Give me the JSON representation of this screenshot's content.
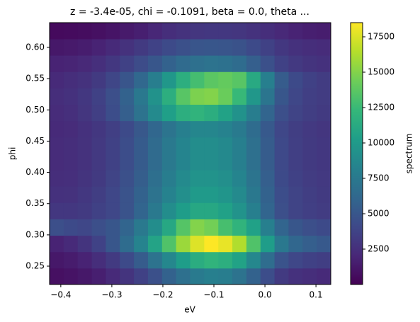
{
  "chart_data": {
    "type": "heatmap",
    "title": "z = -3.4e-05, chi = -0.1091, beta = 0.0, theta ...",
    "x_label": "eV",
    "y_label": "phi",
    "colorbar_label": "spectrum",
    "colormap": "viridis",
    "x": [
      -0.4082,
      -0.3807,
      -0.3531,
      -0.3256,
      -0.298,
      -0.2705,
      -0.2429,
      -0.2154,
      -0.1878,
      -0.1603,
      -0.1327,
      -0.1052,
      -0.0776,
      -0.0501,
      -0.0225,
      0.005,
      0.0326,
      0.0601,
      0.0877,
      0.1152
    ],
    "y": [
      0.2337,
      0.2599,
      0.2861,
      0.3123,
      0.3385,
      0.3647,
      0.3909,
      0.4171,
      0.4433,
      0.4695,
      0.4957,
      0.5219,
      0.5481,
      0.5743,
      0.6005,
      0.6267
    ],
    "z": [
      [
        800,
        960,
        1200,
        1600,
        2200,
        2800,
        3600,
        4600,
        5800,
        6800,
        7600,
        8000,
        7800,
        7000,
        5800,
        4400,
        3200,
        2600,
        2400,
        2200
      ],
      [
        1200,
        1400,
        1800,
        2400,
        3200,
        4200,
        5400,
        7000,
        8600,
        10200,
        11400,
        12000,
        11600,
        10600,
        8600,
        6600,
        4800,
        4000,
        3600,
        3400
      ],
      [
        1800,
        2200,
        2800,
        3700,
        5000,
        6500,
        8300,
        10700,
        13300,
        15700,
        17600,
        18500,
        17900,
        16300,
        13300,
        10200,
        7400,
        6100,
        5600,
        5200
      ],
      [
        4500,
        4200,
        4000,
        4500,
        5000,
        6000,
        7500,
        9000,
        11000,
        13500,
        15000,
        14500,
        13000,
        12000,
        10500,
        8000,
        6000,
        5000,
        4500,
        4200
      ],
      [
        3000,
        3000,
        3200,
        3600,
        4000,
        4800,
        6000,
        7500,
        9000,
        10200,
        11000,
        11000,
        10500,
        9500,
        8000,
        6000,
        4500,
        3800,
        3500,
        3300
      ],
      [
        2600,
        2700,
        3000,
        3400,
        4000,
        4800,
        5800,
        7000,
        8200,
        9200,
        10000,
        10000,
        9600,
        8800,
        7400,
        5800,
        4400,
        3800,
        3400,
        3200
      ],
      [
        2400,
        2500,
        2800,
        3200,
        3800,
        4600,
        5500,
        6700,
        7800,
        8800,
        9500,
        9500,
        9200,
        8400,
        7100,
        5600,
        4200,
        3600,
        3300,
        3100
      ],
      [
        2300,
        2400,
        2700,
        3100,
        3600,
        4400,
        5300,
        6400,
        7500,
        8400,
        9000,
        9000,
        8700,
        8000,
        6800,
        5400,
        4100,
        3500,
        3200,
        3000
      ],
      [
        2300,
        2400,
        2700,
        3100,
        3600,
        4400,
        5300,
        6400,
        7500,
        8400,
        9000,
        9000,
        8700,
        8000,
        6800,
        5400,
        4100,
        3500,
        3200,
        3000
      ],
      [
        2200,
        2300,
        2600,
        3000,
        3500,
        4200,
        5100,
        6100,
        7100,
        8000,
        8500,
        8500,
        8200,
        7600,
        6500,
        5200,
        4000,
        3400,
        3100,
        2900
      ],
      [
        2300,
        2500,
        2900,
        3500,
        4400,
        5600,
        7000,
        8800,
        10400,
        11600,
        12000,
        11500,
        10600,
        9400,
        7800,
        6000,
        4500,
        3800,
        3400,
        3200
      ],
      [
        2400,
        2600,
        3000,
        3600,
        4500,
        5800,
        7400,
        9400,
        11600,
        13600,
        14800,
        15000,
        14200,
        12400,
        9800,
        7200,
        5000,
        4000,
        3500,
        3300
      ],
      [
        2200,
        2400,
        2700,
        3200,
        3900,
        4900,
        6200,
        7900,
        9800,
        11600,
        12900,
        13700,
        14000,
        13600,
        11200,
        8000,
        5400,
        4200,
        3600,
        3300
      ],
      [
        1800,
        1900,
        2100,
        2500,
        3000,
        3600,
        4300,
        5000,
        5800,
        6400,
        6800,
        7000,
        6900,
        6500,
        5600,
        4600,
        3600,
        3100,
        2800,
        2600
      ],
      [
        1200,
        1300,
        1500,
        1800,
        2200,
        2700,
        3200,
        3700,
        4200,
        4600,
        4900,
        5000,
        4900,
        4700,
        4200,
        3600,
        3000,
        2600,
        2400,
        2300
      ],
      [
        500,
        550,
        650,
        800,
        1000,
        1300,
        1600,
        2000,
        2400,
        2700,
        2900,
        3000,
        3000,
        2900,
        2700,
        2400,
        2100,
        1800,
        1600,
        1500
      ]
    ],
    "xlim": [
      -0.422,
      0.129
    ],
    "ylim": [
      0.2206,
      0.6396
    ],
    "clim": [
      0,
      18500
    ],
    "xticks": [
      {
        "value": -0.4,
        "label": "−0.4"
      },
      {
        "value": -0.3,
        "label": "−0.3"
      },
      {
        "value": -0.2,
        "label": "−0.2"
      },
      {
        "value": -0.1,
        "label": "−0.1"
      },
      {
        "value": 0,
        "label": "0.0"
      },
      0.1
    ],
    "yticks": [
      0.25,
      {
        "value": 0.3,
        "label": "0.30"
      },
      0.35,
      {
        "value": 0.4,
        "label": "0.40"
      },
      0.45,
      {
        "value": 0.5,
        "label": "0.50"
      },
      0.55,
      {
        "value": 0.6,
        "label": "0.60"
      }
    ],
    "cticks": [
      2500,
      5000,
      7500,
      10000,
      12500,
      15000,
      17500
    ]
  }
}
